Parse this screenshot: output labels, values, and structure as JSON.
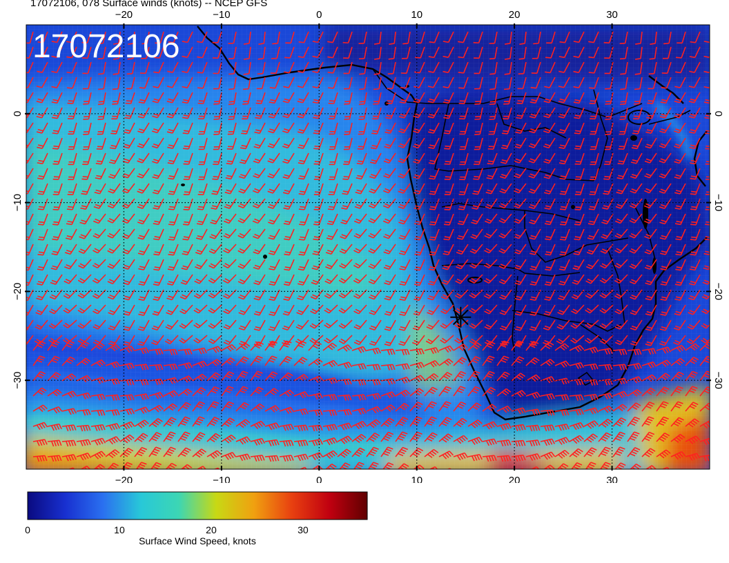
{
  "title": "17072106, 078 Surface winds (knots) -- NCEP GFS",
  "stamp": "17072106",
  "map": {
    "lon_range": [
      -30,
      40
    ],
    "lat_range": [
      -40,
      10
    ],
    "lon_ticks": [
      -20,
      -10,
      0,
      10,
      20,
      30
    ],
    "lat_ticks": [
      0,
      -10,
      -20,
      -30
    ],
    "lon_tick_labels": [
      "−20",
      "−10",
      "0",
      "10",
      "20",
      "30"
    ],
    "lat_tick_labels": [
      "0",
      "−10",
      "−20",
      "−30"
    ],
    "grid": true,
    "barb_color": "#ff2020",
    "marker": {
      "symbol": "star",
      "lon": 14.5,
      "lat": -22.9
    }
  },
  "colorbar": {
    "label": "Surface Wind Speed, knots",
    "ticks": [
      "0",
      "10",
      "20",
      "30"
    ],
    "range": [
      0,
      37
    ],
    "colors": [
      "#0a0a80",
      "#1830d0",
      "#2a70f0",
      "#28c8d8",
      "#3cd6b4",
      "#c8d814",
      "#f0a010",
      "#e84010",
      "#c00010",
      "#600000"
    ]
  }
}
